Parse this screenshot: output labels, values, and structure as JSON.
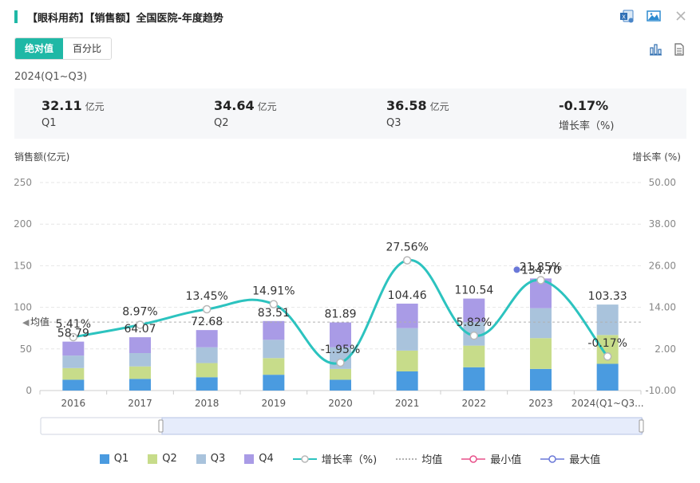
{
  "header": {
    "title": "【眼科用药】【销售额】全国医院-年度趋势"
  },
  "toggle": {
    "absolute": "绝对值",
    "percent": "百分比"
  },
  "period": "2024(Q1~Q3)",
  "summary": [
    {
      "value": "32.11",
      "unit": "亿元",
      "label": "Q1"
    },
    {
      "value": "34.64",
      "unit": "亿元",
      "label": "Q2"
    },
    {
      "value": "36.58",
      "unit": "亿元",
      "label": "Q3"
    },
    {
      "value": "-0.17%",
      "unit": "",
      "label": "增长率（%)"
    }
  ],
  "axis": {
    "left_label": "销售额(亿元)",
    "right_label": "增长率 (%)"
  },
  "colors": {
    "accent": "#1fb8a6",
    "q1": "#4a9be0",
    "q2": "#c7dc8a",
    "q3": "#a9c3dc",
    "q4": "#a99be6",
    "growth": "#2cc3bf",
    "min": "#e8508a",
    "max": "#6a78d8"
  },
  "legend": {
    "q1": "Q1",
    "q2": "Q2",
    "q3": "Q3",
    "q4": "Q4",
    "growth": "增长率（%)",
    "avg": "均值",
    "min": "最小值",
    "max": "最大值"
  },
  "chart_data": {
    "type": "bar",
    "stacked": true,
    "categories": [
      "2016",
      "2017",
      "2018",
      "2019",
      "2020",
      "2021",
      "2022",
      "2023",
      "2024(Q1~Q3..."
    ],
    "series": [
      {
        "name": "Q1",
        "values": [
          13.0,
          14.0,
          16.0,
          19.0,
          13.0,
          23.0,
          28.0,
          26.0,
          32.11
        ]
      },
      {
        "name": "Q2",
        "values": [
          14.0,
          15.0,
          17.0,
          20.0,
          13.0,
          25.0,
          26.0,
          37.0,
          34.64
        ]
      },
      {
        "name": "Q3",
        "values": [
          15.0,
          16.0,
          19.0,
          22.0,
          26.0,
          27.0,
          28.0,
          36.0,
          36.58
        ]
      },
      {
        "name": "Q4",
        "values": [
          16.79,
          19.07,
          20.68,
          22.51,
          29.89,
          29.46,
          28.54,
          35.7,
          0
        ]
      }
    ],
    "totals": [
      58.79,
      64.07,
      72.68,
      83.51,
      81.89,
      104.46,
      110.54,
      134.7,
      103.33
    ],
    "growth_rate": {
      "name": "增长率（%)",
      "values": [
        5.41,
        8.97,
        13.45,
        14.91,
        -1.95,
        27.56,
        5.82,
        21.85,
        -0.17
      ],
      "labels": [
        "5.41%",
        "8.97%",
        "13.45%",
        "14.91%",
        "-1.95%",
        "27.56%",
        "5.82%",
        "21.85%",
        "-0.17%"
      ]
    },
    "average": {
      "label": "均值",
      "value": 82.3
    },
    "left_axis": {
      "label": "销售额(亿元)",
      "min": 0,
      "max": 250,
      "ticks": [
        0,
        50,
        100,
        150,
        200,
        250
      ]
    },
    "right_axis": {
      "label": "增长率 (%)",
      "min": -10,
      "max": 50,
      "ticks": [
        "-10.00",
        "2.00",
        "14.00",
        "26.00",
        "38.00",
        "50.00"
      ]
    },
    "max_point": {
      "category": "2023",
      "label": "134.70"
    }
  }
}
